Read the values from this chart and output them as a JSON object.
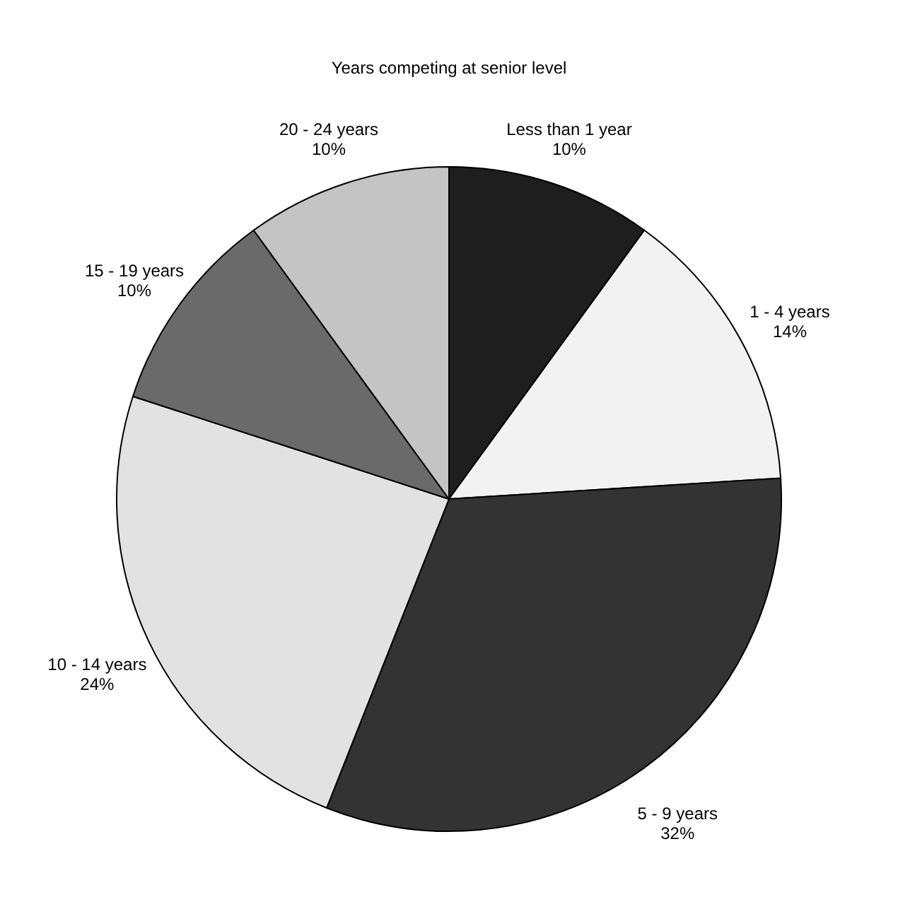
{
  "chart_data": {
    "type": "pie",
    "title": "Years competing at senior level",
    "categories": [
      "Less than 1 year",
      "1 - 4 years",
      "5 - 9 years",
      "10 - 14 years",
      "15 - 19 years",
      "20 - 24 years"
    ],
    "values": [
      10,
      14,
      32,
      24,
      10,
      10
    ],
    "value_labels": [
      "10%",
      "14%",
      "32%",
      "24%",
      "10%",
      "10%"
    ],
    "colors": [
      "#1e1e1e",
      "#f2f2f2",
      "#333333",
      "#e2e2e2",
      "#6a6a6a",
      "#c4c4c4"
    ],
    "legend": false
  }
}
